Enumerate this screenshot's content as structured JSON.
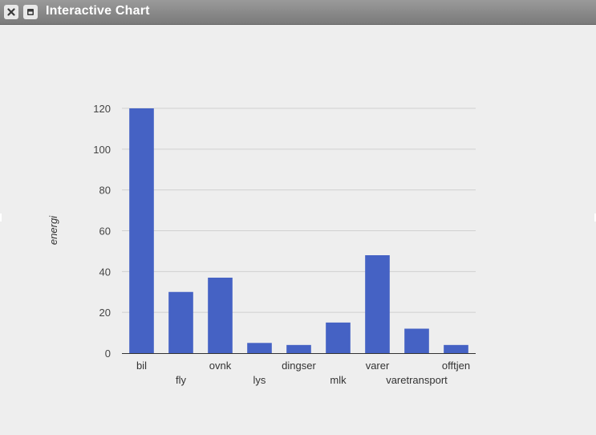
{
  "window": {
    "title": "Interactive Chart",
    "close_icon": "close-icon",
    "maximize_icon": "maximize-icon"
  },
  "chart_data": {
    "type": "bar",
    "categories": [
      "bil",
      "fly",
      "ovnk",
      "lys",
      "dingser",
      "mlk",
      "varer",
      "varetransport",
      "offtjen"
    ],
    "values": [
      120,
      30,
      37,
      5,
      4,
      15,
      48,
      12,
      4
    ],
    "title": "",
    "xlabel": "",
    "ylabel": "energi",
    "ylim": [
      0,
      120
    ],
    "yticks": [
      0,
      20,
      40,
      60,
      80,
      100,
      120
    ],
    "grid": true,
    "legend": "none",
    "bar_color": "#4562c4"
  }
}
